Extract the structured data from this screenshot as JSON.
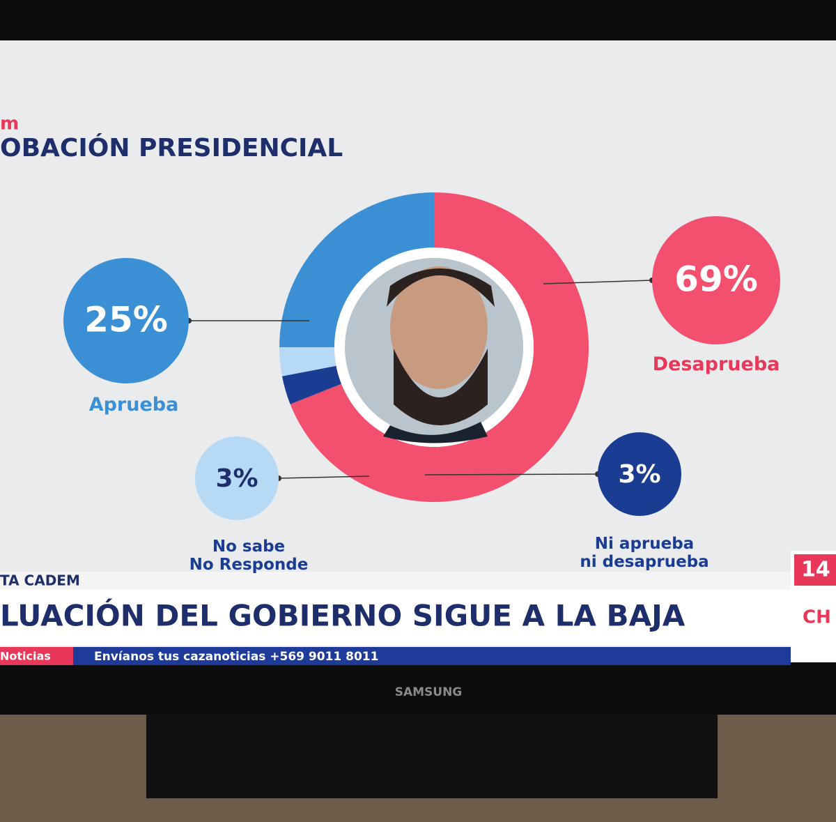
{
  "chart_data": {
    "type": "donut",
    "title": "OBACIÓN PRESIDENCIAL",
    "categories": [
      "Desaprueba",
      "Ni aprueba\nni desaprueba",
      "No sabe\nNo Responde",
      "Aprueba"
    ],
    "values": [
      69,
      3,
      3,
      25
    ],
    "value_labels": [
      "69%",
      "3%",
      "3%",
      "25%"
    ],
    "colors": [
      "#f2506e",
      "#1b3c93",
      "#b6d9f6",
      "#3a8fd5"
    ]
  },
  "screen": {
    "logo": "m",
    "kicker": "TA CADEM",
    "headline": "LUACIÓN DEL GOBIERNO SIGUE A LA BAJA",
    "ticker_tag": "Noticias",
    "ticker": "Envíanos tus cazanoticias +569 9011 8011",
    "channel": "14",
    "channel_name": "CH",
    "brand": "SAMSUNG"
  }
}
